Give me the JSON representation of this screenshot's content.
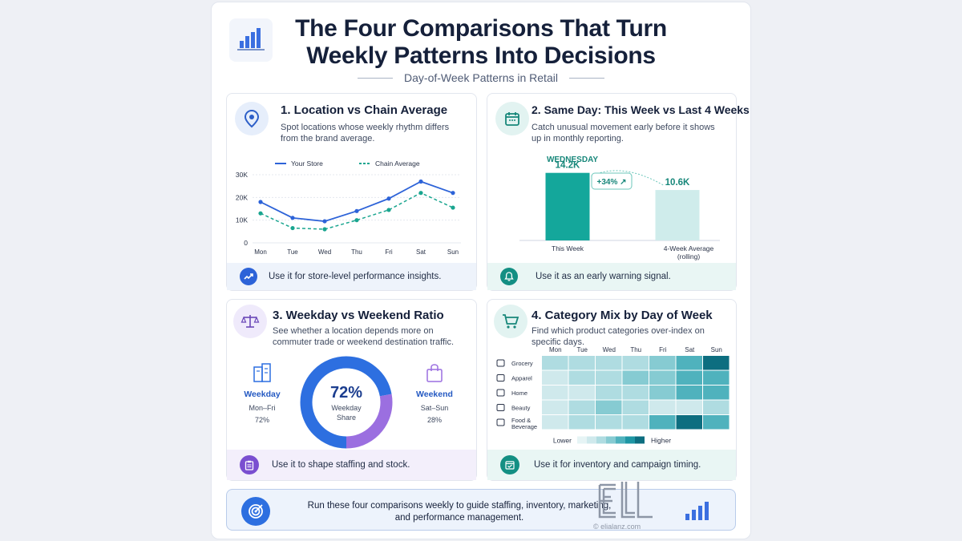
{
  "header": {
    "title_line1": "The Four Comparisons That Turn",
    "title_line2": "Weekly Patterns Into Decisions",
    "subtitle": "Day-of-Week Patterns in Retail"
  },
  "cards": [
    {
      "title": "1. Location vs Chain Average",
      "desc": "Spot locations whose weekly rhythm differs from the brand average.",
      "foot": "Use it for store-level performance insights.",
      "icon": "map-pin-icon"
    },
    {
      "title": "2. Same Day: This Week vs Last 4 Weeks",
      "desc": "Catch unusual movement early before it shows up in monthly reporting.",
      "foot": "Use it as an early warning signal.",
      "icon": "calendar-icon"
    },
    {
      "title": "3. Weekday vs Weekend Ratio",
      "desc": "See whether a location depends more on commuter trade or weekend destination traffic.",
      "foot": "Use it to shape staffing and stock.",
      "icon": "balance-scale-icon"
    },
    {
      "title": "4. Category Mix by Day of Week",
      "desc": "Find which product categories over-index on specific days.",
      "foot": "Use it for inventory and campaign timing.",
      "icon": "shopping-cart-icon"
    }
  ],
  "banner": {
    "text": "Run these four comparisons weekly to guide staffing, inventory, marketing, and performance management."
  },
  "watermark": {
    "text": "© elialanz.com"
  },
  "chart_data": [
    {
      "type": "line",
      "x": [
        "Mon",
        "Tue",
        "Wed",
        "Thu",
        "Fri",
        "Sat",
        "Sun"
      ],
      "series": [
        {
          "name": "Your Store",
          "values": [
            18000,
            11000,
            9500,
            14000,
            19500,
            27000,
            22000
          ],
          "color": "#2d63d8",
          "style": "solid"
        },
        {
          "name": "Chain Average",
          "values": [
            13000,
            6500,
            6000,
            10000,
            14500,
            22000,
            15500
          ],
          "color": "#19a58f",
          "style": "dashed"
        }
      ],
      "yticks": [
        "0",
        "10K",
        "20K",
        "30K"
      ],
      "ylim": [
        0,
        30000
      ]
    },
    {
      "type": "bar",
      "label_top": "WEDNESDAY",
      "categories": [
        "This Week",
        "4-Week Average"
      ],
      "category_sub": [
        "",
        "(rolling)"
      ],
      "values": [
        14.2,
        10.6
      ],
      "value_labels": [
        "14.2K",
        "10.6K"
      ],
      "change_label": "+34% ↗",
      "colors": [
        "#14a79b",
        "#cfeceb"
      ]
    },
    {
      "type": "pie",
      "center_value": "72%",
      "center_label_1": "Weekday",
      "center_label_2": "Share",
      "slices": [
        {
          "name": "Weekday",
          "range": "Mon–Fri",
          "value": 72,
          "label": "72%",
          "color": "#2d6fe0"
        },
        {
          "name": "Weekend",
          "range": "Sat–Sun",
          "value": 28,
          "label": "28%",
          "color": "#9b6fe0"
        }
      ]
    },
    {
      "type": "heatmap",
      "columns": [
        "Mon",
        "Tue",
        "Wed",
        "Thu",
        "Fri",
        "Sat",
        "Sun"
      ],
      "rows": [
        "Grocery",
        "Apparel",
        "Home",
        "Beauty",
        "Food & Beverage"
      ],
      "values": [
        [
          2,
          2,
          2,
          2,
          3,
          4,
          6
        ],
        [
          1,
          2,
          2,
          3,
          3,
          4,
          4
        ],
        [
          1,
          1,
          2,
          2,
          3,
          4,
          4
        ],
        [
          1,
          2,
          3,
          2,
          1,
          1,
          2
        ],
        [
          1,
          2,
          2,
          2,
          4,
          6,
          4
        ]
      ],
      "scale_low": "Lower",
      "scale_high": "Higher",
      "palette": [
        "#e6f4f5",
        "#cfe9ec",
        "#afdce1",
        "#86cbd2",
        "#4fb2bd",
        "#1e96a4",
        "#0d6e80"
      ]
    }
  ]
}
